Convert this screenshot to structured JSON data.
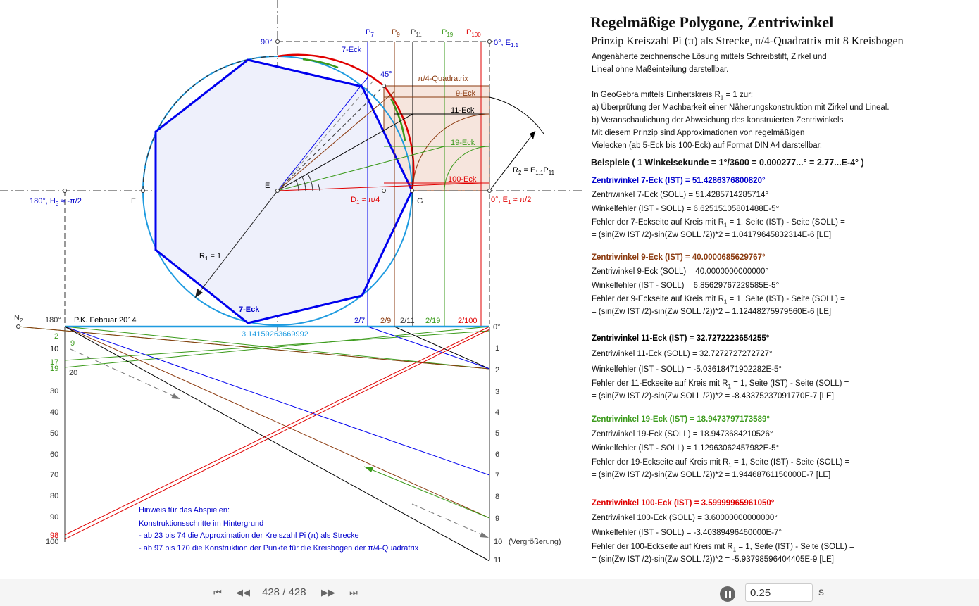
{
  "canvas": {
    "labels": {
      "l90": "90°",
      "l0e11": "0°, E",
      "l0e11_sub": "1.1",
      "p7": "P",
      "p7s": "7",
      "p9": "P",
      "p9s": "9",
      "p11": "P",
      "p11s": "11",
      "p19": "P",
      "p19s": "19",
      "p100": "P",
      "p100s": "100",
      "eck7_top": "7-Eck",
      "l45": "45°",
      "quadratrix": "π/4-Quadratrix",
      "eck9": "9-Eck",
      "eck11": "11-Eck",
      "eck19": "19-Eck",
      "eck100": "100-Eck",
      "r2": "R",
      "r2s": "2",
      "r2rest": " = E",
      "r2s2": "1.1",
      "r2p": "P",
      "r2s3": "11",
      "E": "E",
      "l180": "180°, H",
      "l180s": "3",
      "l180rest": " ≈ -π/2",
      "F": "F",
      "d1": "D",
      "d1s": "1",
      "d1rest": " ≈ π/4",
      "G": "G",
      "l0e1": "0°, E",
      "l0e1s": "1",
      "l0e1rest": " ≈ π/2",
      "r1": "R",
      "r1s": "1",
      "r1rest": " = 1",
      "eck7_bottom": "7-Eck",
      "n2": "N",
      "n2s": "2",
      "l180b": "180°",
      "pk": "P.K. Februar 2014",
      "pi_val": "3.14159263669992",
      "f27": "2/7",
      "f29": "2/9",
      "f211": "2/11",
      "f219": "2/19",
      "f2100": "2/100",
      "deg0": "0°",
      "vergr": "(Vergrößerung)",
      "left_ticks": [
        "2",
        "9",
        "10",
        "17",
        "19",
        "20",
        "30",
        "40",
        "50",
        "60",
        "70",
        "80",
        "90",
        "98",
        "100"
      ],
      "right_ticks": [
        "1",
        "2",
        "3",
        "4",
        "5",
        "6",
        "7",
        "8",
        "9",
        "10",
        "11"
      ],
      "hint_title": "Hinweis für das Abspielen:",
      "hint_1": "Konstruktionsschritte im Hintergrund",
      "hint_2": "- ab 23 bis 74 die Approximation der Kreiszahl Pi (π) als Strecke",
      "hint_3": "- ab 97 bis 170 die Konstruktion der Punkte für die Kreisbogen der π/4-Quadratrix"
    }
  },
  "panel": {
    "title": "Regelmäßige Polygone, Zentriwinkel",
    "subtitle": "Prinzip Kreiszahl Pi (π) als Strecke, π/4-Quadratrix mit 8 Kreisbogen",
    "intro_1": "Angenäherte zeichnerische Lösung mittels Schreibstift, Zirkel und",
    "intro_2": "Lineal ohne Maßeinteilung darstellbar.",
    "geo_1a": "In GeoGebra mittels Einheitskreis R",
    "geo_1s": "1",
    "geo_1b": " = 1 zur:",
    "geo_2": "a)  Überprüfung der Machbarkeit einer Näherungskonstruktion mit Zirkel und Lineal.",
    "geo_3": "b)  Veranschaulichung der Abweichung des konstruierten Zentriwinkels",
    "geo_4": "Mit diesem Prinzip sind Approximationen von regelmäßigen",
    "geo_5": "Vielecken (ab 5-Eck bis 100-Eck) auf Format DIN A4 darstellbar.",
    "beispiele": "Beispiele ( 1 Winkelsekunde = 1°/3600 = 0.000277...° = 2.77...E-4° )",
    "blocks": [
      {
        "ist": "Zentriwinkel 7-Eck (IST) = 51.4286376800820°",
        "soll": "Zentriwinkel 7-Eck (SOLL) = 51.4285714285714°",
        "fehler": "Winkelfehler (IST - SOLL) = 6.62515105801488E-5°",
        "seite_a": "Fehler der 7-Eckseite auf Kreis mit R",
        "seite_s": "1",
        "seite_b": " = 1, Seite (IST) - Seite (SOLL) =",
        "formel": "= (sin(Zw IST /2)-sin(Zw SOLL /2))*2 = 1.04179645832314E-6 [LE]"
      },
      {
        "ist": "Zentriwinkel 9-Eck (IST) = 40.0000685629767°",
        "soll": "Zentriwinkel 9-Eck (SOLL) = 40.0000000000000°",
        "fehler": "Winkelfehler (IST - SOLL) = 6.85629767229585E-5°",
        "seite_a": "Fehler der 9-Eckseite auf Kreis mit R",
        "seite_s": "1",
        "seite_b": " = 1, Seite (IST) - Seite (SOLL) =",
        "formel": "= (sin(Zw IST /2)-sin(Zw SOLL /2))*2 = 1.12448275979560E-6 [LE]"
      },
      {
        "ist": "Zentriwinkel 11-Eck (IST) = 32.7272223654255°",
        "soll": "Zentriwinkel 11-Eck (SOLL) = 32.7272727272727°",
        "fehler": "Winkelfehler (IST - SOLL) = -5.03618471902282E-5°",
        "seite_a": "Fehler der 11-Eckseite auf Kreis mit R",
        "seite_s": "1",
        "seite_b": " = 1, Seite (IST) - Seite (SOLL) =",
        "formel": "= (sin(Zw IST /2)-sin(Zw SOLL /2))*2 = -8.43375237091770E-7 [LE]"
      },
      {
        "ist": "Zentriwinkel 19-Eck (IST) = 18.9473797173589°",
        "soll": "Zentriwinkel 19-Eck (SOLL) = 18.9473684210526°",
        "fehler": "Winkelfehler (IST - SOLL) = 1.12963062457982E-5°",
        "seite_a": "Fehler der 19-Eckseite auf Kreis mit R",
        "seite_s": "1",
        "seite_b": " = 1, Seite (IST) - Seite (SOLL) =",
        "formel": "= (sin(Zw IST /2)-sin(Zw SOLL /2))*2 = 1.94468761150000E-7 [LE]"
      },
      {
        "ist": "Zentriwinkel 100-Eck (IST) = 3.59999965961050°",
        "soll": "Zentriwinkel 100-Eck (SOLL) = 3.60000000000000°",
        "fehler": "Winkelfehler (IST - SOLL) = -3.40389496460000E-7°",
        "seite_a": "Fehler der 100-Eckseite auf Kreis mit R",
        "seite_s": "1",
        "seite_b": " = 1, Seite (IST) - Seite (SOLL) =",
        "formel": "= (sin(Zw IST /2)-sin(Zw SOLL /2))*2 = -5.93798596404405E-9 [LE]"
      }
    ]
  },
  "toolbar": {
    "first_icon": "skip-first-icon",
    "prev_icon": "step-back-icon",
    "step": "428 / 428",
    "next_icon": "step-forward-icon",
    "last_icon": "skip-last-icon",
    "pause_icon": "pause-icon",
    "speed": "0.25",
    "unit": "s"
  },
  "colors": {
    "blue": "#0000cc",
    "brown": "#8b3a0f",
    "green": "#3a9a1a",
    "red": "#e00000",
    "cyan": "#1e9be0",
    "polygon_fill": "#eef0fb",
    "quadratrix_fill": "#f6e5dd"
  }
}
